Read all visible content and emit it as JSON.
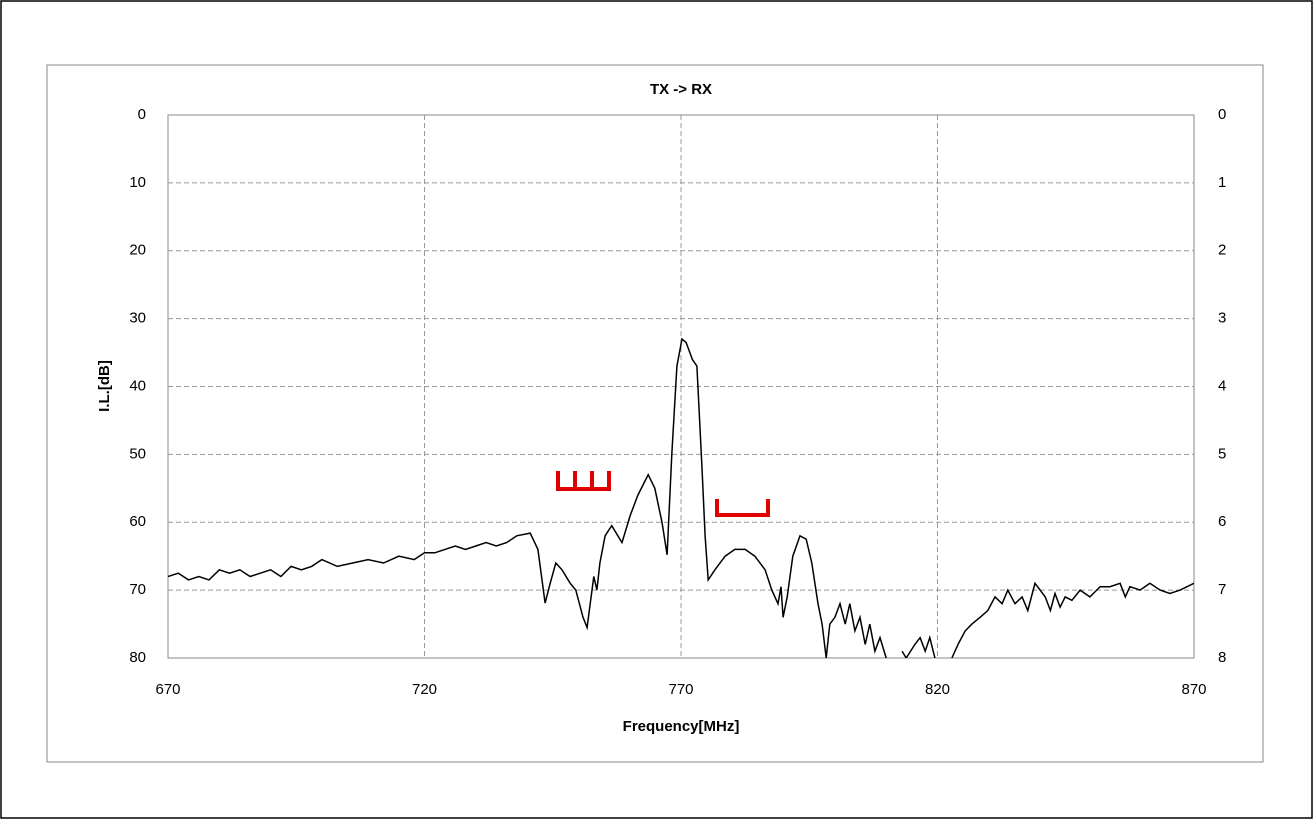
{
  "chart_data": {
    "type": "line",
    "title": "TX -> RX",
    "x_label": "Frequency[MHz]",
    "y_label": "I.L.[dB]",
    "xlim": [
      670,
      870
    ],
    "xticks": [
      670,
      720,
      770,
      820,
      870
    ],
    "ylim": [
      80,
      0
    ],
    "yticks": [
      0,
      10,
      20,
      30,
      40,
      50,
      60,
      70,
      80
    ],
    "y2lim": [
      8,
      0
    ],
    "y2ticks": [
      0,
      1,
      2,
      3,
      4,
      5,
      6,
      7,
      8
    ],
    "grid": true,
    "x": [
      670,
      672,
      674,
      676,
      678,
      680,
      682,
      684,
      686,
      688,
      690,
      692,
      694,
      696,
      698,
      700,
      703,
      706,
      709,
      712,
      715,
      718,
      720,
      722,
      724,
      726,
      728,
      730,
      732,
      734,
      736,
      738,
      740.6,
      742.1,
      743.5,
      744.5,
      745.6,
      746.8,
      748.4,
      749.5,
      750.9,
      751.7,
      752.3,
      753.0,
      753.6,
      754.2,
      755.2,
      756.5,
      757.7,
      758.5,
      760.1,
      761.6,
      763.6,
      764.9,
      766.3,
      767.3,
      768.2,
      769.2,
      770.2,
      771.0,
      772.2,
      773.1,
      774.1,
      774.7,
      775.3,
      776.6,
      778.6,
      780.5,
      782.5,
      784.4,
      786.4,
      787.7,
      788.9,
      789.5,
      789.9,
      790.7,
      791.8,
      793.2,
      794.4,
      795.5,
      796.7,
      797.5,
      798.3,
      799.0,
      800.0,
      801.0,
      802.0,
      802.9,
      803.9,
      804.9,
      805.9,
      806.8,
      807.8,
      808.8,
      810.0,
      812.0,
      813.1,
      813.9,
      815.6,
      816.6,
      817.6,
      818.5,
      819.5,
      821.0,
      822.8,
      824.0,
      825.4,
      826.7,
      828.3,
      829.8,
      831.2,
      832.6,
      833.7,
      835.1,
      836.5,
      837.6,
      839.0,
      840.0,
      841.0,
      842.0,
      842.9,
      843.9,
      844.9,
      846.2,
      847.8,
      849.7,
      851.7,
      853.6,
      855.6,
      856.6,
      857.5,
      859.5,
      861.4,
      863.4,
      865.3,
      867.3,
      870
    ],
    "series": [
      {
        "name": "TX -> RX",
        "color": "#000000",
        "values": [
          68,
          67.5,
          68.5,
          68,
          68.5,
          67,
          67.5,
          67,
          68,
          67.5,
          67,
          68,
          66.5,
          67,
          66.5,
          65.5,
          66.5,
          66,
          65.5,
          66,
          65,
          65.5,
          64.5,
          64.5,
          64,
          63.5,
          64,
          63.5,
          63,
          63.5,
          63,
          62,
          61.6,
          64,
          71.9,
          69,
          66,
          67,
          69,
          70,
          74,
          75.5,
          72,
          68,
          70,
          66,
          62,
          60.5,
          62,
          63,
          59,
          56,
          53,
          55,
          60,
          64.8,
          50,
          37,
          33,
          33.5,
          36,
          37,
          52,
          62,
          68.5,
          67,
          65,
          64,
          64,
          65,
          67,
          70,
          72,
          69.5,
          74,
          71,
          65,
          62,
          62.5,
          66,
          72,
          75,
          80,
          75,
          74,
          72,
          75,
          72,
          76,
          74,
          78,
          75,
          79,
          77,
          80,
          null,
          79,
          80,
          78,
          77,
          79,
          77,
          80,
          null,
          80,
          78,
          76,
          75,
          74,
          73,
          71,
          72,
          70,
          72,
          71,
          73,
          69,
          70,
          71,
          73,
          70.5,
          72.5,
          71,
          71.5,
          70,
          71,
          69.5,
          69.5,
          69,
          71,
          69.5,
          70,
          69,
          70,
          70.5,
          70,
          69
        ]
      }
    ]
  }
}
